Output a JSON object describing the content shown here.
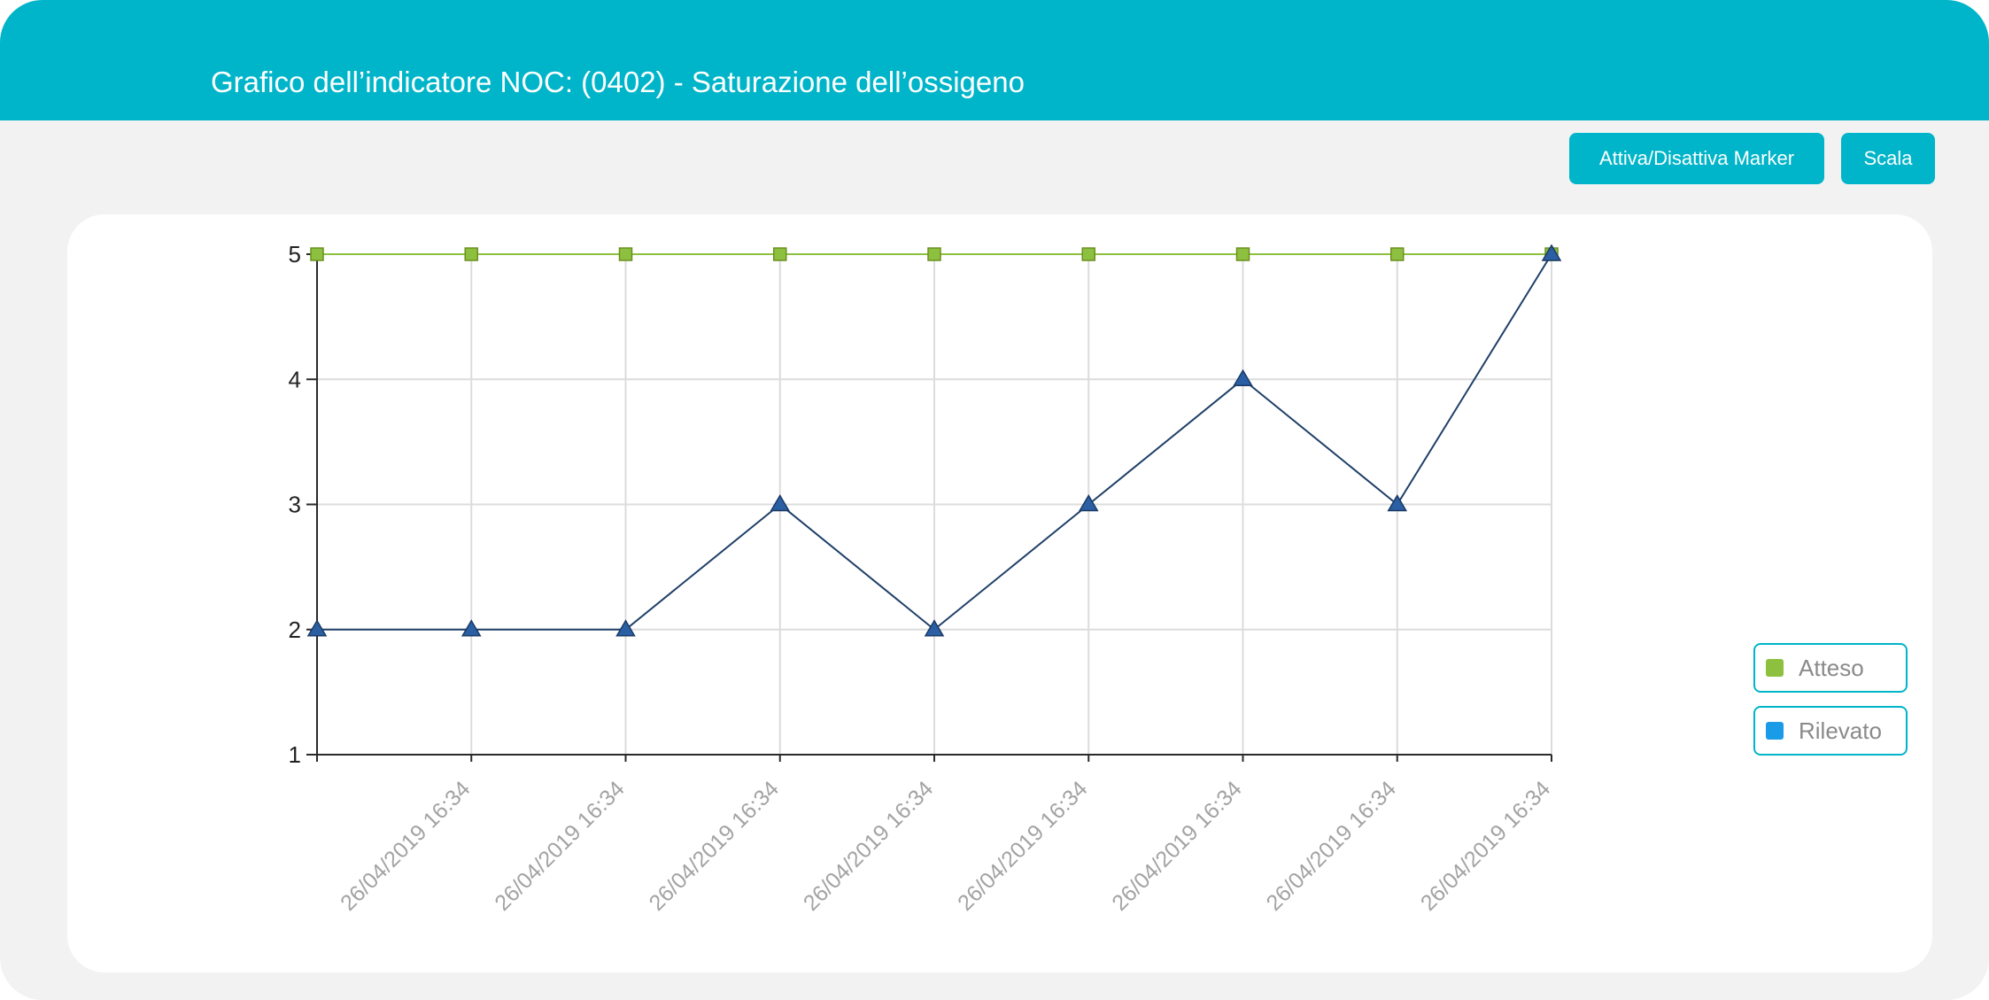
{
  "header": {
    "title": "Grafico dell’indicatore NOC: (0402) - Saturazione dell’ossigeno"
  },
  "toolbar": {
    "marker_label": "Attiva/Disattiva Marker",
    "scale_label": "Scala"
  },
  "colors": {
    "accent": "#00b5c9",
    "atteso": "#8dc03f",
    "rilevato_line": "#1f3f68",
    "rilevato_marker": "#2a5fa3",
    "rilevato_legend": "#1a9be8"
  },
  "legend": {
    "items": [
      {
        "label": "Atteso",
        "color": "#8dc03f"
      },
      {
        "label": "Rilevato",
        "color": "#1a9be8"
      }
    ]
  },
  "chart_data": {
    "type": "line",
    "categories": [
      "26/04/2019 16:34",
      "26/04/2019 16:34",
      "26/04/2019 16:34",
      "26/04/2019 16:34",
      "26/04/2019 16:34",
      "26/04/2019 16:34",
      "26/04/2019 16:34",
      "26/04/2019 16:34",
      "26/04/2019 16:34"
    ],
    "x_tick_labels": [
      "26/04/2019 16:34",
      "26/04/2019 16:34",
      "26/04/2019 16:34",
      "26/04/2019 16:34",
      "26/04/2019 16:34",
      "26/04/2019 16:34",
      "26/04/2019 16:34",
      "26/04/2019 16:34"
    ],
    "series": [
      {
        "name": "Atteso",
        "values": [
          5,
          5,
          5,
          5,
          5,
          5,
          5,
          5,
          5
        ],
        "marker": "square"
      },
      {
        "name": "Rilevato",
        "values": [
          2,
          2,
          2,
          3,
          2,
          3,
          4,
          3,
          5
        ],
        "marker": "triangle"
      }
    ],
    "y_ticks": [
      1,
      2,
      3,
      4,
      5
    ],
    "ylim": [
      1,
      5
    ],
    "grid": true,
    "legend_position": "right"
  }
}
